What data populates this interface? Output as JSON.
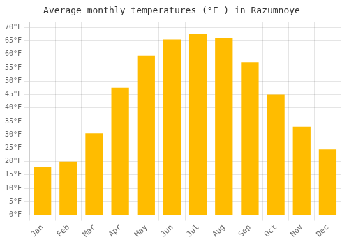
{
  "chart_data": {
    "type": "bar",
    "title": "Average monthly temperatures (°F ) in Razumnoye",
    "categories": [
      "Jan",
      "Feb",
      "Mar",
      "Apr",
      "May",
      "Jun",
      "Jul",
      "Aug",
      "Sep",
      "Oct",
      "Nov",
      "Dec"
    ],
    "values": [
      18,
      20,
      30.5,
      47.5,
      59.5,
      65.5,
      67.5,
      66,
      57,
      45,
      33,
      24.5
    ],
    "color": "#FFBC00",
    "ylim": [
      0,
      72
    ],
    "yticks": [
      {
        "value": 0,
        "label": "0°F"
      },
      {
        "value": 5,
        "label": "5°F"
      },
      {
        "value": 10,
        "label": "10°F"
      },
      {
        "value": 15,
        "label": "15°F"
      },
      {
        "value": 20,
        "label": "20°F"
      },
      {
        "value": 25,
        "label": "25°F"
      },
      {
        "value": 30,
        "label": "30°F"
      },
      {
        "value": 35,
        "label": "35°F"
      },
      {
        "value": 40,
        "label": "40°F"
      },
      {
        "value": 45,
        "label": "45°F"
      },
      {
        "value": 50,
        "label": "50°F"
      },
      {
        "value": 55,
        "label": "55°F"
      },
      {
        "value": 60,
        "label": "60°F"
      },
      {
        "value": 65,
        "label": "65°F"
      },
      {
        "value": 70,
        "label": "70°F"
      }
    ],
    "grid": true
  }
}
